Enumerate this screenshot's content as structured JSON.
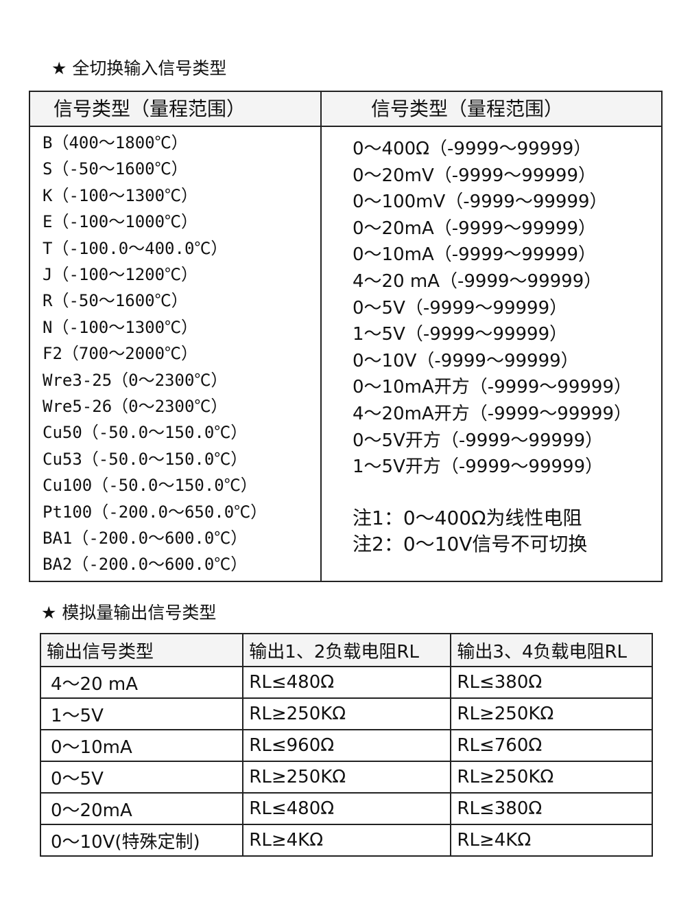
{
  "input_section": {
    "heading": "★ 全切换输入信号类型",
    "headers": [
      "信号类型（量程范围）",
      "信号类型（量程范围）"
    ],
    "left": [
      "B（400～1800℃）",
      "S（-50～1600℃）",
      "K（-100～1300℃）",
      "E（-100～1000℃）",
      "T（-100.0～400.0℃）",
      "J（-100～1200℃）",
      "R（-50～1600℃）",
      "N（-100～1300℃）",
      "F2（700～2000℃）",
      "Wre3-25（0～2300℃）",
      "Wre5-26（0～2300℃）",
      "Cu50（-50.0～150.0℃）",
      "Cu53（-50.0～150.0℃）",
      "Cu100（-50.0～150.0℃）",
      "Pt100（-200.0～650.0℃）",
      "BA1（-200.0～600.0℃）",
      "BA2（-200.0～600.0℃）"
    ],
    "right": [
      "0～400Ω（-9999～99999）",
      "0～20mV（-9999～99999）",
      "0～100mV（-9999～99999）",
      "0～20mA（-9999～99999）",
      "0～10mA（-9999～99999）",
      "4～20 mA（-9999～99999）",
      "0～5V（-9999～99999）",
      "1～5V（-9999～99999）",
      "0～10V（-9999～99999）",
      "0～10mA开方（-9999～99999）",
      "4～20mA开方（-9999～99999）",
      "0～5V开方（-9999～99999）",
      "1～5V开方（-9999～99999）"
    ],
    "notes": [
      "注1：0～400Ω为线性电阻",
      "注2：0～10V信号不可切换"
    ]
  },
  "output_section": {
    "heading": "★ 模拟量输出信号类型",
    "table": {
      "header": [
        "输出信号类型",
        "输出1、2负载电阻RL",
        "输出3、4负载电阻RL"
      ],
      "rows": [
        [
          "4～20 mA",
          "RL≤480Ω",
          "RL≤380Ω"
        ],
        [
          "1～5V",
          "RL≥250KΩ",
          "RL≥250KΩ"
        ],
        [
          "0～10mA",
          "RL≤960Ω",
          "RL≤760Ω"
        ],
        [
          "0～5V",
          "RL≥250KΩ",
          "RL≥250KΩ"
        ],
        [
          "0～20mA",
          "RL≤480Ω",
          "RL≤380Ω"
        ],
        [
          "0～10V(特殊定制)",
          "RL≥4KΩ",
          "RL≥4KΩ"
        ]
      ]
    }
  }
}
